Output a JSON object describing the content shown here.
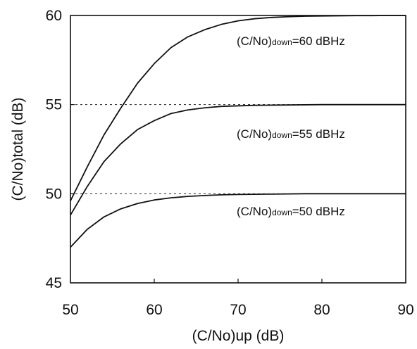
{
  "chart_data": {
    "type": "line",
    "xlabel": "(C/No)up  (dB)",
    "ylabel": "(C/No)total  (dB)",
    "xlim": [
      50,
      90
    ],
    "ylim": [
      45,
      60
    ],
    "xticks": [
      50,
      60,
      70,
      80,
      90
    ],
    "yticks": [
      45,
      50,
      55,
      60
    ],
    "x_tick_labels": [
      "50",
      "60",
      "70",
      "80",
      "90"
    ],
    "y_tick_labels": [
      "45",
      "50",
      "55",
      "60"
    ],
    "grid": false,
    "reference_lines": [
      50,
      55
    ],
    "x": [
      50,
      52,
      54,
      56,
      58,
      60,
      62,
      64,
      66,
      68,
      70,
      72,
      74,
      76,
      78,
      80,
      82,
      84,
      86,
      88,
      90
    ],
    "series": [
      {
        "values": [
          49.6,
          51.5,
          53.3,
          54.8,
          56.2,
          57.3,
          58.2,
          58.8,
          59.2,
          59.5,
          59.7,
          59.82,
          59.89,
          59.93,
          59.96,
          59.97,
          59.98,
          59.99,
          59.99,
          60.0,
          60.0
        ],
        "annotation": {
          "prefix": "(C/No)",
          "sub": "down",
          "suffix": "=60 dBHz"
        }
      },
      {
        "values": [
          48.8,
          50.4,
          51.8,
          52.8,
          53.6,
          54.1,
          54.5,
          54.7,
          54.82,
          54.9,
          54.93,
          54.96,
          54.97,
          54.98,
          54.99,
          55.0,
          55.0,
          55.0,
          55.0,
          55.0,
          55.0
        ],
        "annotation": {
          "prefix": "(C/No)",
          "sub": "down",
          "suffix": "=55 dBHz"
        }
      },
      {
        "values": [
          47.0,
          48.0,
          48.7,
          49.15,
          49.45,
          49.65,
          49.77,
          49.85,
          49.9,
          49.94,
          49.96,
          49.97,
          49.98,
          49.99,
          50.0,
          50.0,
          50.0,
          50.0,
          50.0,
          50.0,
          50.0
        ],
        "annotation": {
          "prefix": "(C/No)",
          "sub": "down",
          "suffix": "=50 dBHz"
        }
      }
    ]
  }
}
